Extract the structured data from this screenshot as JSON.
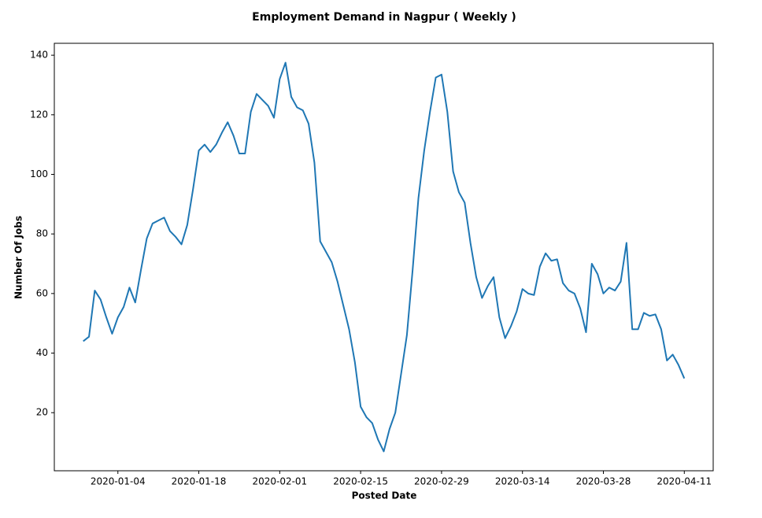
{
  "chart_data": {
    "type": "line",
    "title": "Employment Demand in Nagpur ( Weekly )",
    "x_label": "Posted Date",
    "y_label": "Number Of Jobs",
    "color": "#1f77b4",
    "x": [
      "2019-12-29",
      "2019-12-30",
      "2019-12-31",
      "2020-01-01",
      "2020-01-02",
      "2020-01-03",
      "2020-01-04",
      "2020-01-05",
      "2020-01-06",
      "2020-01-07",
      "2020-01-08",
      "2020-01-09",
      "2020-01-10",
      "2020-01-11",
      "2020-01-12",
      "2020-01-13",
      "2020-01-14",
      "2020-01-15",
      "2020-01-16",
      "2020-01-17",
      "2020-01-18",
      "2020-01-19",
      "2020-01-20",
      "2020-01-21",
      "2020-01-22",
      "2020-01-23",
      "2020-01-24",
      "2020-01-25",
      "2020-01-26",
      "2020-01-27",
      "2020-01-28",
      "2020-01-29",
      "2020-01-30",
      "2020-01-31",
      "2020-02-01",
      "2020-02-02",
      "2020-02-03",
      "2020-02-04",
      "2020-02-05",
      "2020-02-06",
      "2020-02-07",
      "2020-02-08",
      "2020-02-09",
      "2020-02-10",
      "2020-02-11",
      "2020-02-12",
      "2020-02-13",
      "2020-02-14",
      "2020-02-15",
      "2020-02-16",
      "2020-02-17",
      "2020-02-18",
      "2020-02-19",
      "2020-02-20",
      "2020-02-21",
      "2020-02-22",
      "2020-02-23",
      "2020-02-24",
      "2020-02-25",
      "2020-02-26",
      "2020-02-27",
      "2020-02-28",
      "2020-02-29",
      "2020-03-01",
      "2020-03-02",
      "2020-03-03",
      "2020-03-04",
      "2020-03-05",
      "2020-03-06",
      "2020-03-07",
      "2020-03-08",
      "2020-03-09",
      "2020-03-10",
      "2020-03-11",
      "2020-03-12",
      "2020-03-13",
      "2020-03-14",
      "2020-03-15",
      "2020-03-16",
      "2020-03-17",
      "2020-03-18",
      "2020-03-19",
      "2020-03-20",
      "2020-03-21",
      "2020-03-22",
      "2020-03-23",
      "2020-03-24",
      "2020-03-25",
      "2020-03-26",
      "2020-03-27",
      "2020-03-28",
      "2020-03-29",
      "2020-03-30",
      "2020-03-31",
      "2020-04-01",
      "2020-04-02",
      "2020-04-03",
      "2020-04-04",
      "2020-04-05",
      "2020-04-06",
      "2020-04-07",
      "2020-04-08",
      "2020-04-09",
      "2020-04-10",
      "2020-04-11"
    ],
    "values": [
      44,
      45.5,
      61,
      58,
      52,
      46.5,
      52,
      55.5,
      62,
      57,
      68,
      78.5,
      83.5,
      84.5,
      85.5,
      81,
      79,
      76.5,
      83,
      95,
      108,
      110,
      107.5,
      110,
      114,
      117.5,
      113,
      107,
      107,
      121,
      127,
      125,
      123,
      119,
      132,
      137.5,
      126,
      122.5,
      121.5,
      117,
      104,
      77.5,
      74,
      70.5,
      64,
      56,
      48,
      37,
      22,
      18.5,
      16.5,
      11,
      7,
      14.5,
      20,
      33,
      46,
      68,
      92,
      108,
      121,
      132.5,
      133.5,
      121,
      101,
      94,
      90.5,
      77,
      65.5,
      58.5,
      62.5,
      65.5,
      52,
      45,
      49,
      54,
      61.5,
      60,
      59.5,
      69,
      73.5,
      71,
      71.5,
      63.5,
      61,
      60,
      55,
      47,
      70,
      66.5,
      60,
      62,
      61,
      64,
      77,
      48,
      48,
      53.5,
      52.5,
      53,
      48,
      37.5,
      39.5,
      36,
      31.5
    ],
    "xlim": [
      "2019-12-24",
      "2020-04-16"
    ],
    "xticks": [
      "2020-01-04",
      "2020-01-18",
      "2020-02-01",
      "2020-02-15",
      "2020-02-29",
      "2020-03-14",
      "2020-03-28",
      "2020-04-11"
    ],
    "ylim": [
      0.5,
      144
    ],
    "yticks": [
      20,
      40,
      60,
      80,
      100,
      120,
      140
    ],
    "grid": false
  }
}
